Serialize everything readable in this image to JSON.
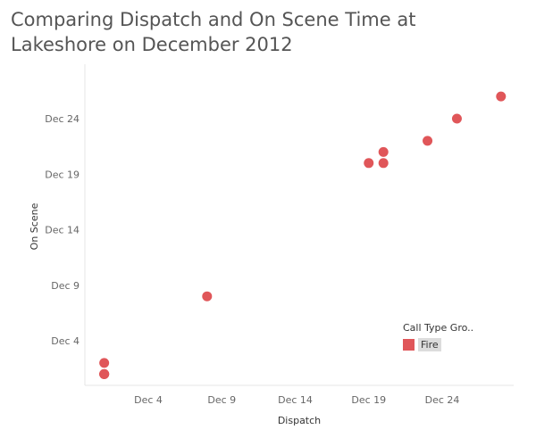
{
  "title": "Comparing Dispatch and On Scene Time at Lakeshore on December 2012",
  "legend": {
    "title": "Call Type Gro..",
    "items": [
      {
        "label": "Fire",
        "color": "#e05659"
      }
    ]
  },
  "chart_data": {
    "type": "scatter",
    "title": "Comparing Dispatch and On Scene Time at Lakeshore on December 2012",
    "xlabel": "Dispatch",
    "ylabel": "On Scene",
    "x_ticks": [
      "Dec 4",
      "Dec 9",
      "Dec 14",
      "Dec 19",
      "Dec 24"
    ],
    "y_ticks": [
      "Dec 4",
      "Dec 9",
      "Dec 14",
      "Dec 19",
      "Dec 24"
    ],
    "grid": false,
    "legend_position": "bottom-right",
    "series": [
      {
        "name": "Fire",
        "color": "#e05659",
        "x": [
          "2012-12-01",
          "2012-12-01",
          "2012-12-01",
          "2012-12-01",
          "2012-12-01",
          "2012-12-08",
          "2012-12-19",
          "2012-12-20",
          "2012-12-20",
          "2012-12-23",
          "2012-12-25",
          "2012-12-28"
        ],
        "y": [
          "2012-12-01",
          "2012-12-01",
          "2012-12-01",
          "2012-12-01",
          "2012-12-02",
          "2012-12-08",
          "2012-12-20",
          "2012-12-20",
          "2012-12-21",
          "2012-12-22",
          "2012-12-24",
          "2012-12-26"
        ]
      }
    ]
  }
}
